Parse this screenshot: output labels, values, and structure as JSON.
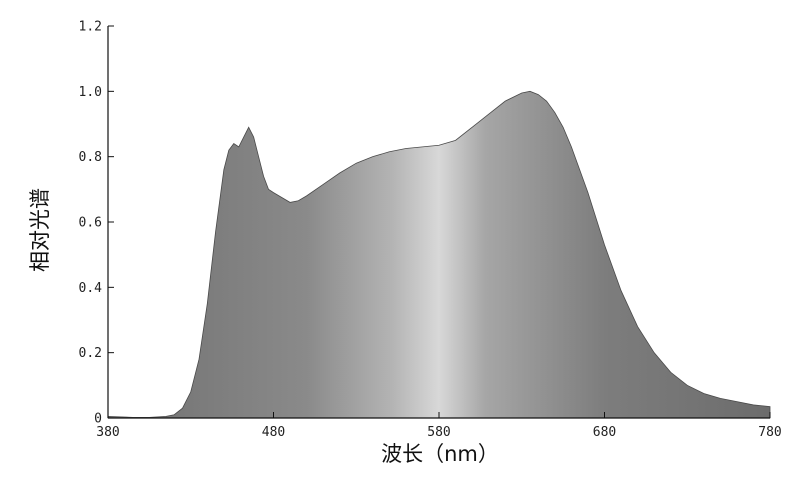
{
  "chart_data": {
    "type": "area",
    "title": "",
    "xlabel": "波长（nm）",
    "ylabel": "相对光谱",
    "xlim": [
      380,
      780
    ],
    "ylim": [
      0,
      1.2
    ],
    "x_ticks": [
      380,
      480,
      580,
      680,
      780
    ],
    "x_tick_labels": [
      "380",
      "480",
      "580",
      "680",
      "780"
    ],
    "y_ticks": [
      0,
      0.2,
      0.4,
      0.6,
      0.8,
      1.0,
      1.2
    ],
    "y_tick_labels": [
      "0",
      "0.2",
      "0.4",
      "0.6",
      "0.8",
      "1.0",
      "1.2"
    ],
    "grid": false,
    "legend": "none",
    "fill_color": "#8a8a8a",
    "series": [
      {
        "x": [
          380,
          395,
          405,
          415,
          420,
          425,
          430,
          435,
          440,
          445,
          450,
          453,
          456,
          459,
          462,
          465,
          468,
          471,
          474,
          477,
          480,
          485,
          490,
          495,
          500,
          510,
          520,
          530,
          540,
          550,
          560,
          570,
          580,
          590,
          600,
          610,
          620,
          630,
          635,
          640,
          645,
          650,
          655,
          660,
          670,
          680,
          690,
          700,
          710,
          720,
          730,
          740,
          750,
          760,
          770,
          780
        ],
        "y": [
          0.005,
          0.002,
          0.002,
          0.005,
          0.01,
          0.03,
          0.08,
          0.18,
          0.35,
          0.57,
          0.76,
          0.82,
          0.84,
          0.83,
          0.86,
          0.89,
          0.86,
          0.8,
          0.74,
          0.7,
          0.69,
          0.675,
          0.66,
          0.665,
          0.68,
          0.715,
          0.75,
          0.78,
          0.8,
          0.815,
          0.825,
          0.83,
          0.835,
          0.85,
          0.89,
          0.93,
          0.97,
          0.995,
          1.0,
          0.99,
          0.97,
          0.935,
          0.89,
          0.83,
          0.69,
          0.53,
          0.39,
          0.28,
          0.2,
          0.14,
          0.1,
          0.075,
          0.06,
          0.05,
          0.04,
          0.035
        ]
      }
    ]
  }
}
